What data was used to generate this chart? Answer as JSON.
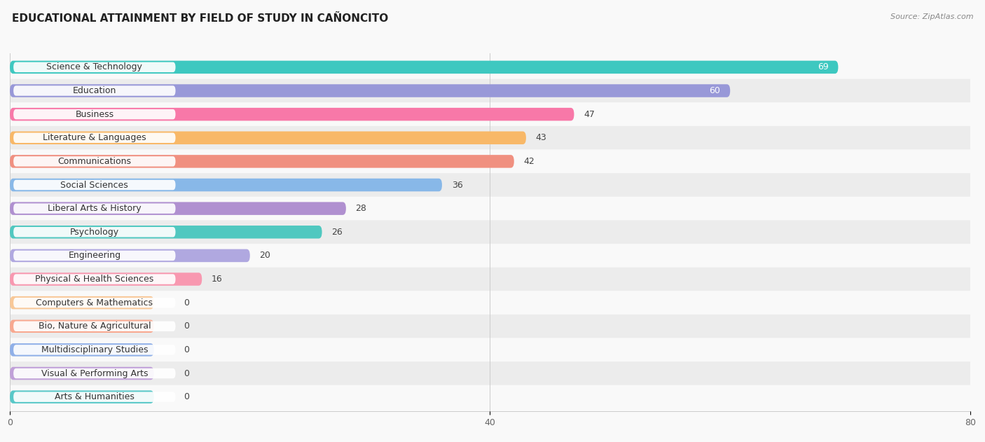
{
  "title": "EDUCATIONAL ATTAINMENT BY FIELD OF STUDY IN CAÑONCITO",
  "source": "Source: ZipAtlas.com",
  "categories": [
    "Science & Technology",
    "Education",
    "Business",
    "Literature & Languages",
    "Communications",
    "Social Sciences",
    "Liberal Arts & History",
    "Psychology",
    "Engineering",
    "Physical & Health Sciences",
    "Computers & Mathematics",
    "Bio, Nature & Agricultural",
    "Multidisciplinary Studies",
    "Visual & Performing Arts",
    "Arts & Humanities"
  ],
  "values": [
    69,
    60,
    47,
    43,
    42,
    36,
    28,
    26,
    20,
    16,
    0,
    0,
    0,
    0,
    0
  ],
  "bar_colors": [
    "#3ec8c0",
    "#9898d8",
    "#f878a8",
    "#f8b868",
    "#f09080",
    "#88b8e8",
    "#b090d0",
    "#50c8c0",
    "#b0a8e0",
    "#f898b0",
    "#f8c898",
    "#f8a890",
    "#90b0e8",
    "#c0a0d8",
    "#58c8c8"
  ],
  "xlim": [
    0,
    80
  ],
  "xticks": [
    0,
    40,
    80
  ],
  "background_color": "#f9f9f9",
  "row_alt_color": "#eeeeee",
  "title_fontsize": 11,
  "label_fontsize": 9,
  "value_fontsize": 9
}
